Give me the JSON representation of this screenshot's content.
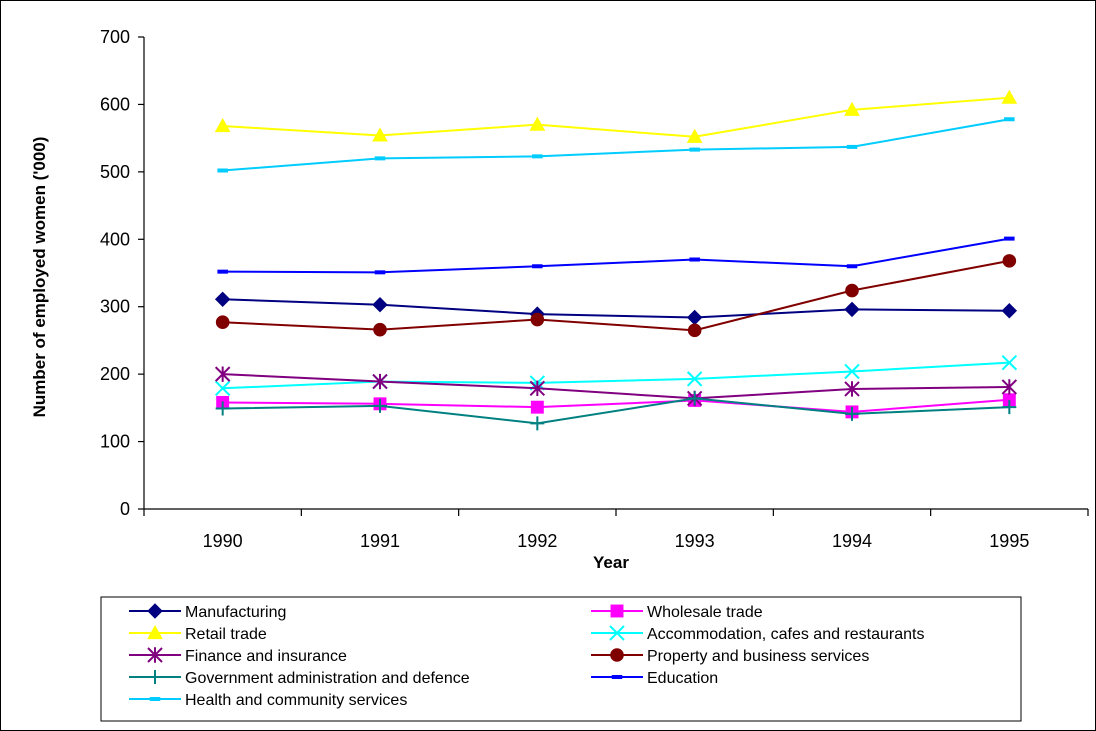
{
  "chart_data": {
    "type": "line",
    "xlabel": "Year",
    "ylabel": "Number of employed women ('000)",
    "ylim": [
      0,
      700
    ],
    "yticks": [
      0,
      100,
      200,
      300,
      400,
      500,
      600,
      700
    ],
    "categories": [
      "1990",
      "1991",
      "1992",
      "1993",
      "1994",
      "1995"
    ],
    "grid": false,
    "legend_position": "bottom",
    "series": [
      {
        "name": "Manufacturing",
        "color": "#000080",
        "marker": "diamond",
        "values": [
          311,
          303,
          289,
          284,
          296,
          294
        ]
      },
      {
        "name": "Wholesale trade",
        "color": "#FF00FF",
        "marker": "square",
        "values": [
          158,
          156,
          151,
          161,
          144,
          162
        ]
      },
      {
        "name": "Retail trade",
        "color": "#FFFF00",
        "marker": "triangle",
        "values": [
          568,
          554,
          570,
          552,
          592,
          610
        ]
      },
      {
        "name": "Accommodation, cafes and restaurants",
        "color": "#00FFFF",
        "marker": "x",
        "values": [
          179,
          189,
          187,
          193,
          204,
          217
        ]
      },
      {
        "name": "Finance and insurance",
        "color": "#800080",
        "marker": "star",
        "values": [
          200,
          189,
          179,
          164,
          178,
          181
        ]
      },
      {
        "name": "Property and business services",
        "color": "#800000",
        "marker": "circle",
        "values": [
          277,
          266,
          281,
          265,
          324,
          368
        ]
      },
      {
        "name": "Government administration and defence",
        "color": "#008080",
        "marker": "plus",
        "values": [
          149,
          153,
          127,
          164,
          141,
          151
        ]
      },
      {
        "name": "Education",
        "color": "#0000FF",
        "marker": "dash",
        "values": [
          352,
          351,
          360,
          370,
          360,
          401
        ]
      },
      {
        "name": "Health and community services",
        "color": "#00CCFF",
        "marker": "dash",
        "values": [
          502,
          520,
          523,
          533,
          537,
          578
        ]
      }
    ]
  }
}
